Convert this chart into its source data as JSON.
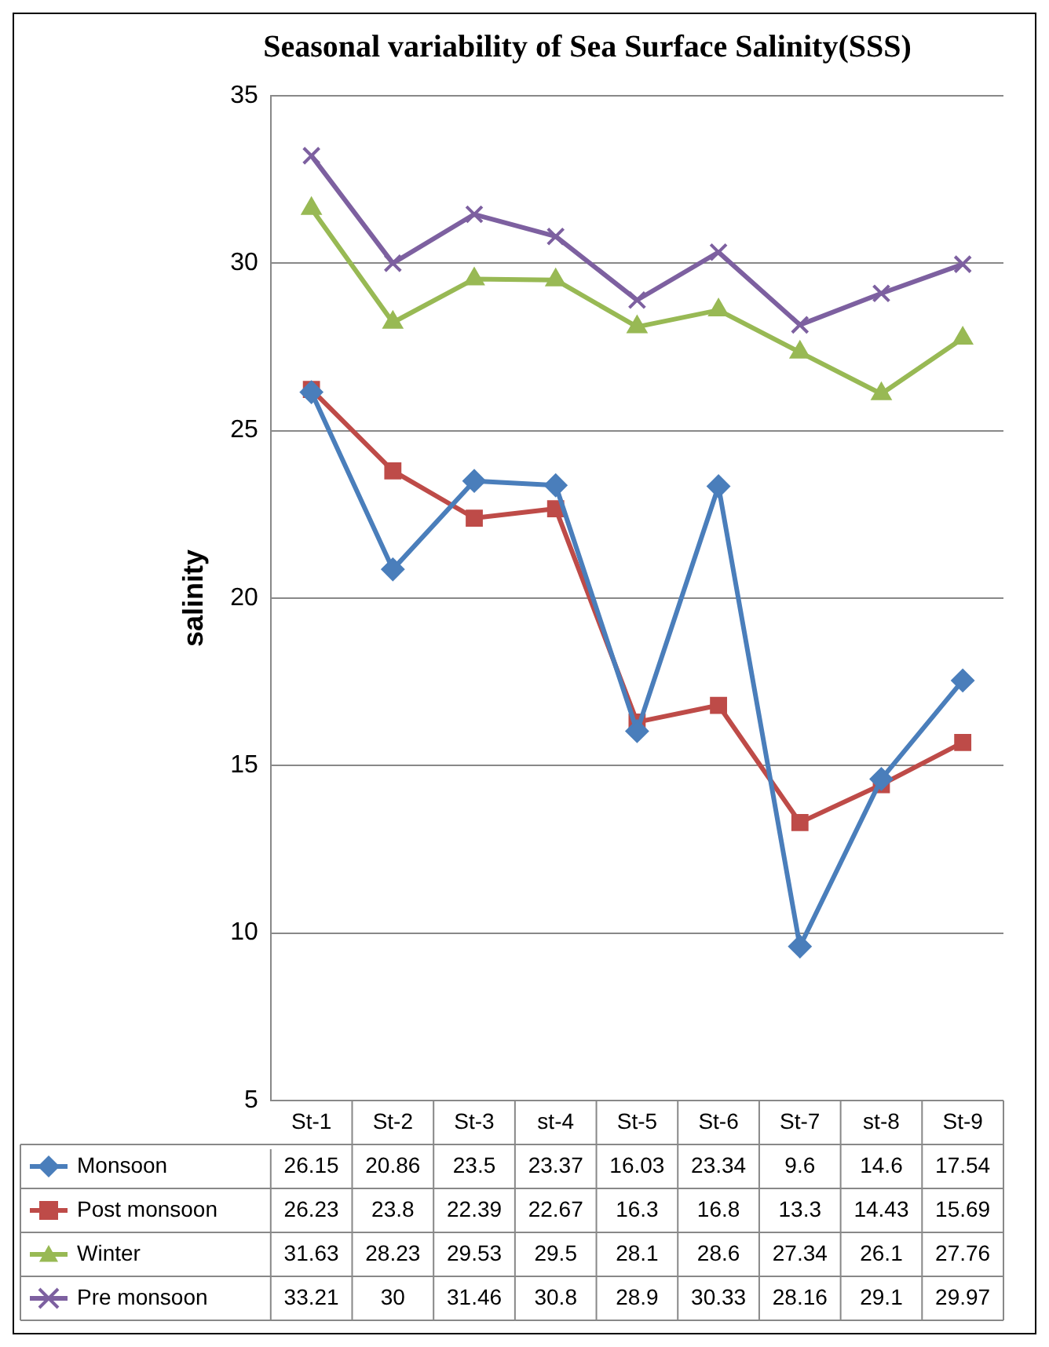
{
  "chart_data": {
    "type": "line",
    "title": "Seasonal variability of Sea Surface Salinity(SSS)",
    "ylabel": "salinity",
    "categories": [
      "St-1",
      "St-2",
      "St-3",
      "st-4",
      "St-5",
      "St-6",
      "St-7",
      "st-8",
      "St-9"
    ],
    "series": [
      {
        "name": "Monsoon",
        "color": "#4a7ebb",
        "marker": "diamond",
        "values": [
          26.15,
          20.86,
          23.5,
          23.37,
          16.03,
          23.34,
          9.6,
          14.6,
          17.54
        ]
      },
      {
        "name": "Post monsoon",
        "color": "#be4b48",
        "marker": "square",
        "values": [
          26.23,
          23.8,
          22.39,
          22.67,
          16.3,
          16.8,
          13.3,
          14.43,
          15.69
        ]
      },
      {
        "name": "Winter",
        "color": "#98b954",
        "marker": "triangle",
        "values": [
          31.63,
          28.23,
          29.53,
          29.5,
          28.1,
          28.6,
          27.34,
          26.1,
          27.76
        ]
      },
      {
        "name": "Pre monsoon",
        "color": "#7d60a0",
        "marker": "cross",
        "values": [
          33.21,
          30,
          31.46,
          30.8,
          28.9,
          30.33,
          28.16,
          29.1,
          29.97
        ]
      }
    ],
    "ylim": [
      5,
      35
    ],
    "yticks": [
      5,
      10,
      15,
      20,
      25,
      30,
      35
    ],
    "grid": "y",
    "legend": "bottom left",
    "data_labels": true
  }
}
